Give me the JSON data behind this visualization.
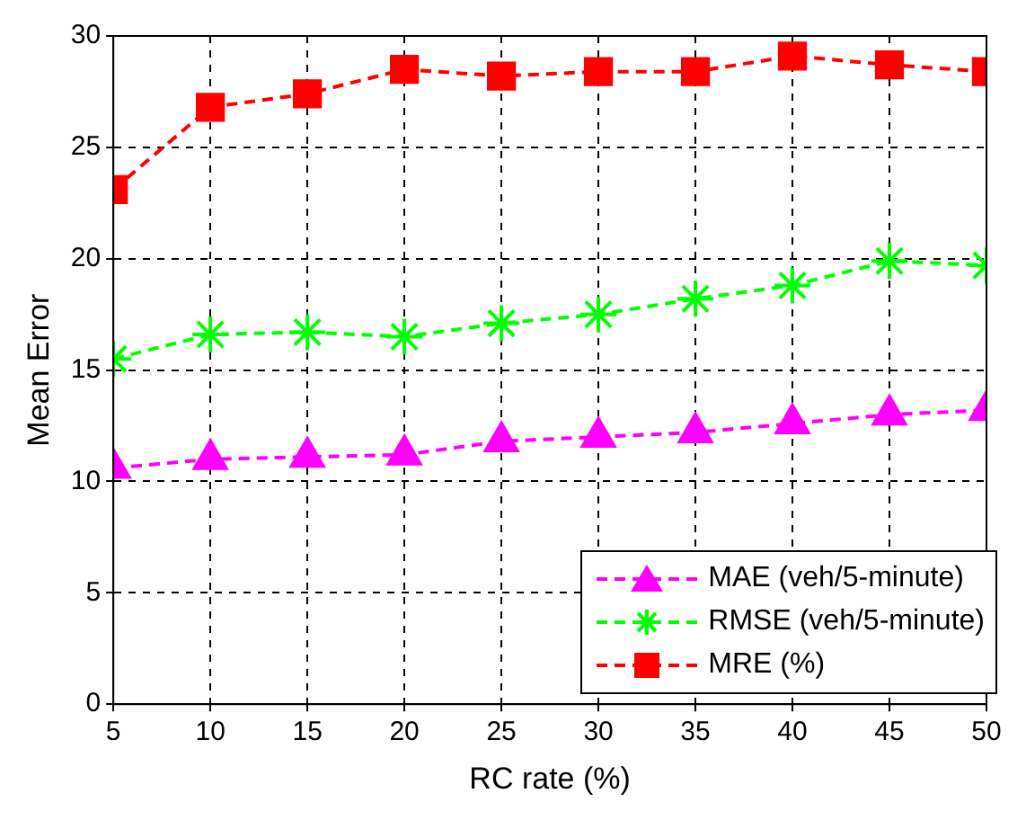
{
  "chart_data": {
    "type": "line",
    "xlabel": "RC rate (%)",
    "ylabel": "Mean Error",
    "x": [
      5,
      10,
      15,
      20,
      25,
      30,
      35,
      40,
      45,
      50
    ],
    "xlim": [
      5,
      50
    ],
    "xticks": [
      5,
      10,
      15,
      20,
      25,
      30,
      35,
      40,
      45,
      50
    ],
    "ylim": [
      0,
      30
    ],
    "yticks": [
      0,
      5,
      10,
      15,
      20,
      25,
      30
    ],
    "grid": true,
    "legend": "bottom right",
    "line_style": "dashed",
    "series": [
      {
        "name": "MAE (veh/5-minute)",
        "color": "#ff00ff",
        "marker": "triangle",
        "values": [
          10.6,
          11.0,
          11.1,
          11.2,
          11.8,
          12.0,
          12.2,
          12.6,
          13.0,
          13.2
        ]
      },
      {
        "name": "RMSE (veh/5-minute)",
        "color": "#00ff00",
        "marker": "cross",
        "values": [
          15.5,
          16.6,
          16.7,
          16.5,
          17.1,
          17.5,
          18.2,
          18.8,
          19.9,
          19.7
        ]
      },
      {
        "name": "MRE (%)",
        "color": "#ff0000",
        "marker": "square",
        "values": [
          23.1,
          26.8,
          27.4,
          28.5,
          28.2,
          28.4,
          28.4,
          29.1,
          28.7,
          28.4
        ]
      }
    ]
  }
}
